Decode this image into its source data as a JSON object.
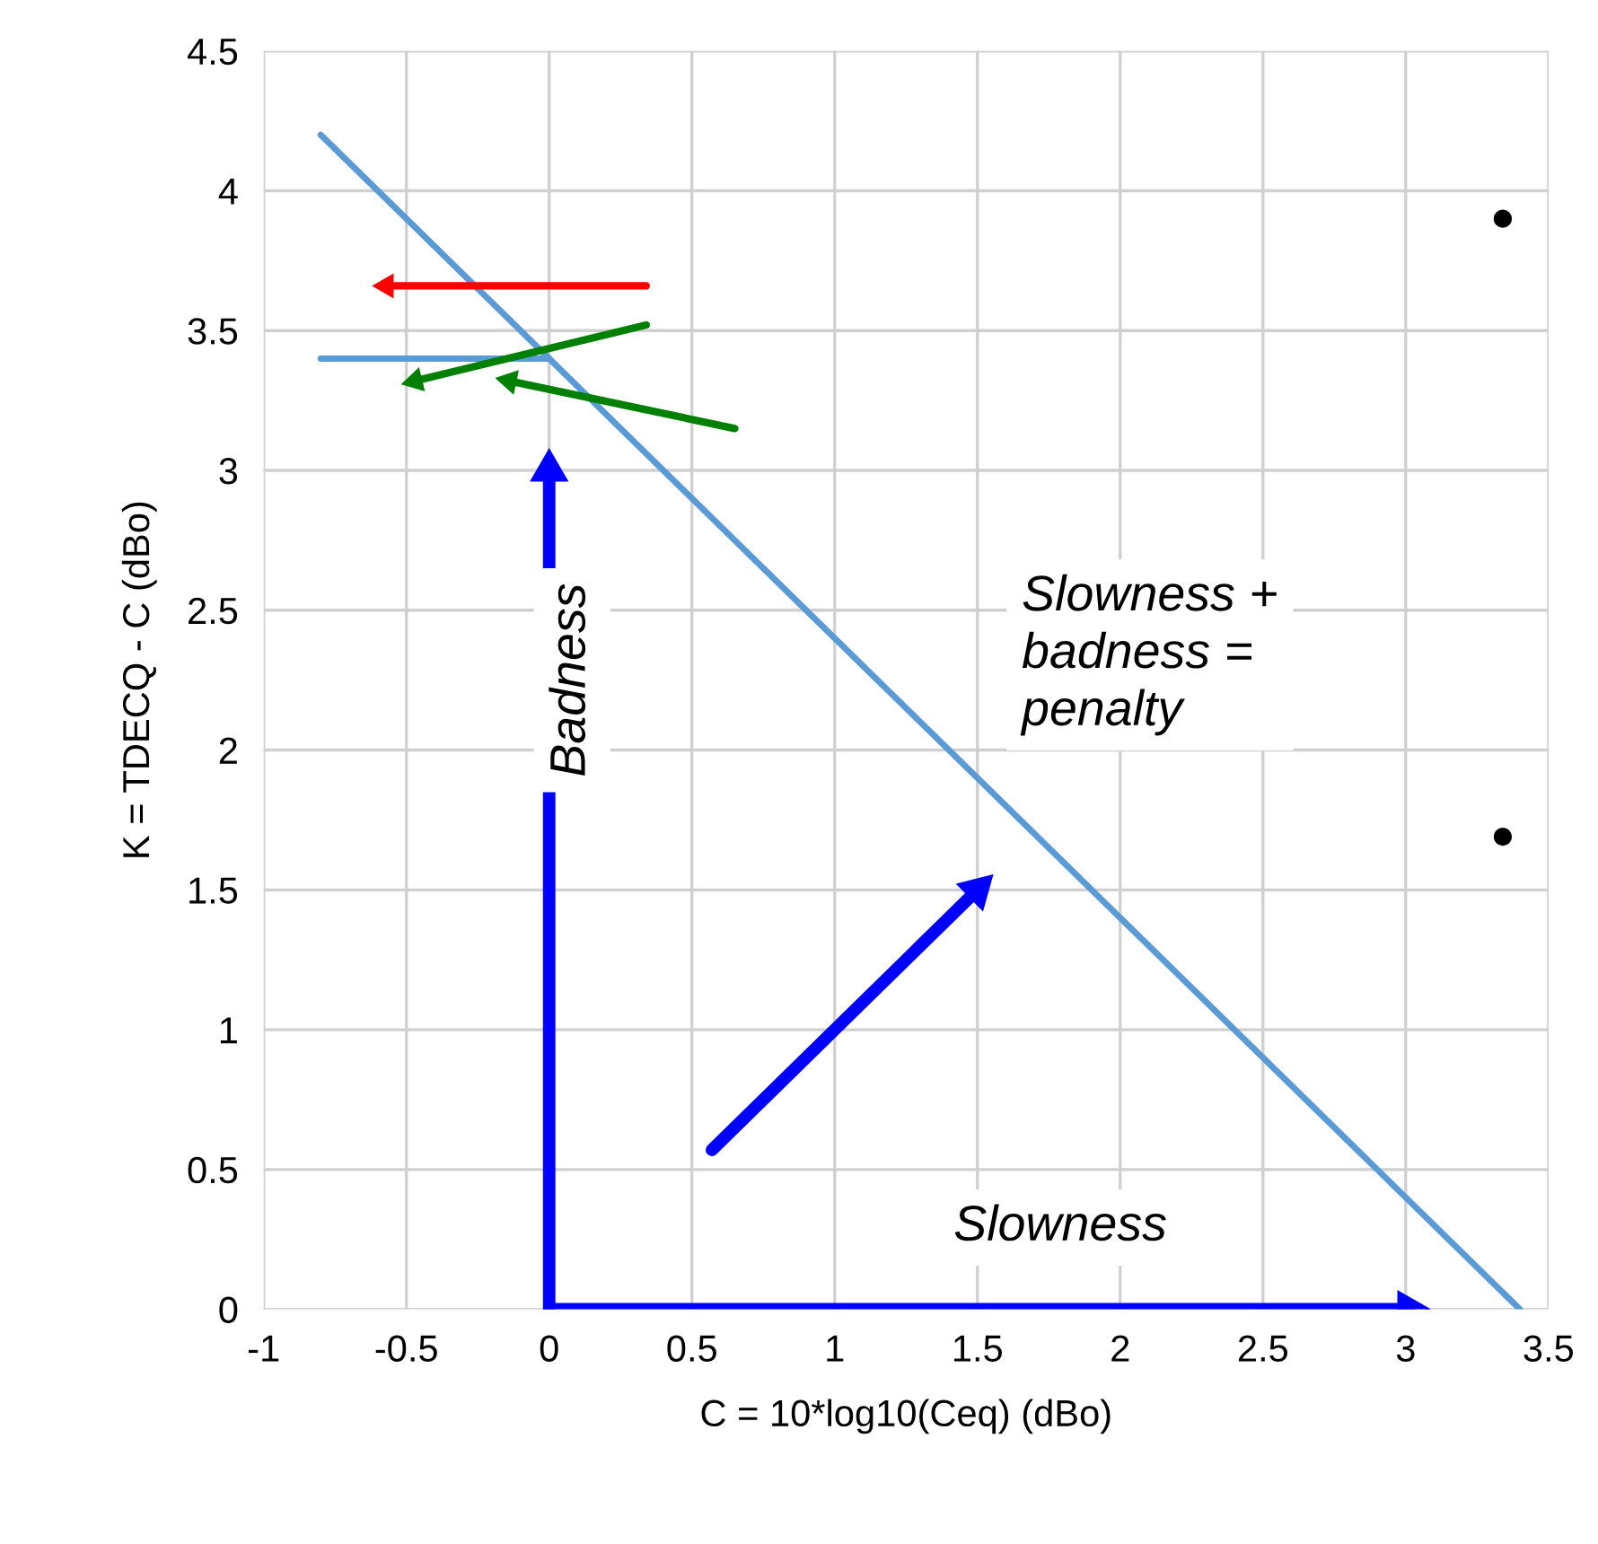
{
  "chart_data": {
    "type": "line",
    "xlabel": "C = 10*log10(Ceq) (dBo)",
    "ylabel": "K = TDECQ - C (dBo)",
    "xlim": [
      -1,
      3.5
    ],
    "xticks": [
      -1,
      -0.5,
      0,
      0.5,
      1,
      1.5,
      2,
      2.5,
      3,
      3.5
    ],
    "ylim": [
      0,
      4.5
    ],
    "yticks": [
      0,
      0.5,
      1,
      1.5,
      2,
      2.5,
      3,
      3.5,
      4,
      4.5
    ],
    "grid": true,
    "series": [
      {
        "color": "#5b9bd5",
        "x": [
          -0.8,
          3.4
        ],
        "values": [
          4.2,
          0
        ]
      },
      {
        "color": "#5b9bd5",
        "x": [
          -0.8,
          0
        ],
        "values": [
          3.4,
          3.4
        ]
      },
      {
        "color": "#ff0000",
        "x": [
          0.34,
          -0.57
        ],
        "values": [
          3.66,
          3.66
        ],
        "marker": "triangle"
      },
      {
        "color": "#008000",
        "x": [
          0.34,
          -0.47
        ],
        "values": [
          3.52,
          3.32
        ],
        "marker": "triangle"
      },
      {
        "color": "#008000",
        "x": [
          0.65,
          -0.14
        ],
        "values": [
          3.15,
          3.32
        ],
        "marker": "triangle"
      },
      {
        "color": "#0000ff",
        "x": [
          0,
          0
        ],
        "values": [
          0,
          3.0
        ],
        "marker": "triangle"
      },
      {
        "color": "#0000ff",
        "x": [
          0,
          3.01
        ],
        "values": [
          0,
          0
        ],
        "marker": "triangle"
      },
      {
        "color": "#0000ff",
        "x": [
          0.57,
          1.5
        ],
        "values": [
          0.57,
          1.5
        ],
        "marker": "triangle"
      },
      {
        "type": "scatter",
        "color": "#000000",
        "x": [
          3.34,
          3.34
        ],
        "values": [
          3.9,
          1.69
        ],
        "marker": "circle"
      }
    ],
    "annotations": [
      "Badness",
      "Slowness",
      "Slowness + badness = penalty"
    ]
  }
}
